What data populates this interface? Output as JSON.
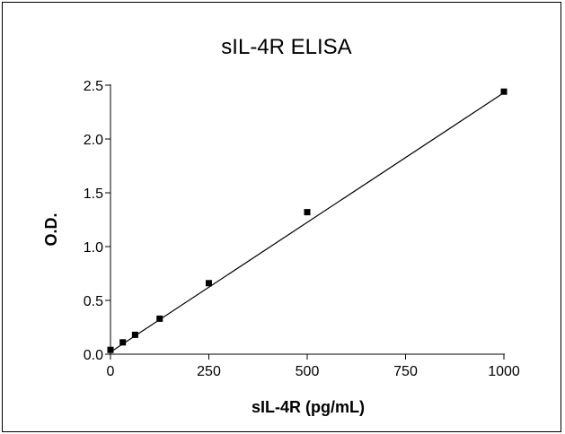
{
  "chart_data": {
    "type": "scatter",
    "title": "sIL-4R ELISA",
    "xlabel": "sIL-4R (pg/mL)",
    "ylabel": "O.D.",
    "xlim": [
      0,
      1000
    ],
    "ylim": [
      0,
      2.5
    ],
    "xticks": [
      0,
      250,
      500,
      750,
      1000
    ],
    "xtick_labels": [
      "0",
      "250",
      "500",
      "750",
      "1000"
    ],
    "yticks": [
      0,
      0.5,
      1.0,
      1.5,
      2.0,
      2.5
    ],
    "ytick_labels": [
      "0.0",
      "0.5",
      "1.0",
      "1.5",
      "2.0",
      "2.5"
    ],
    "grid": false,
    "series": [
      {
        "marker": "square",
        "color": "#000000",
        "x": [
          0,
          31.25,
          62.5,
          125,
          250,
          500,
          1000
        ],
        "y": [
          0.04,
          0.11,
          0.18,
          0.33,
          0.66,
          1.32,
          2.44
        ]
      }
    ],
    "fit_line": {
      "type": "linear",
      "color": "#000000",
      "x": [
        0,
        1000
      ],
      "y": [
        0.02,
        2.43
      ]
    }
  }
}
